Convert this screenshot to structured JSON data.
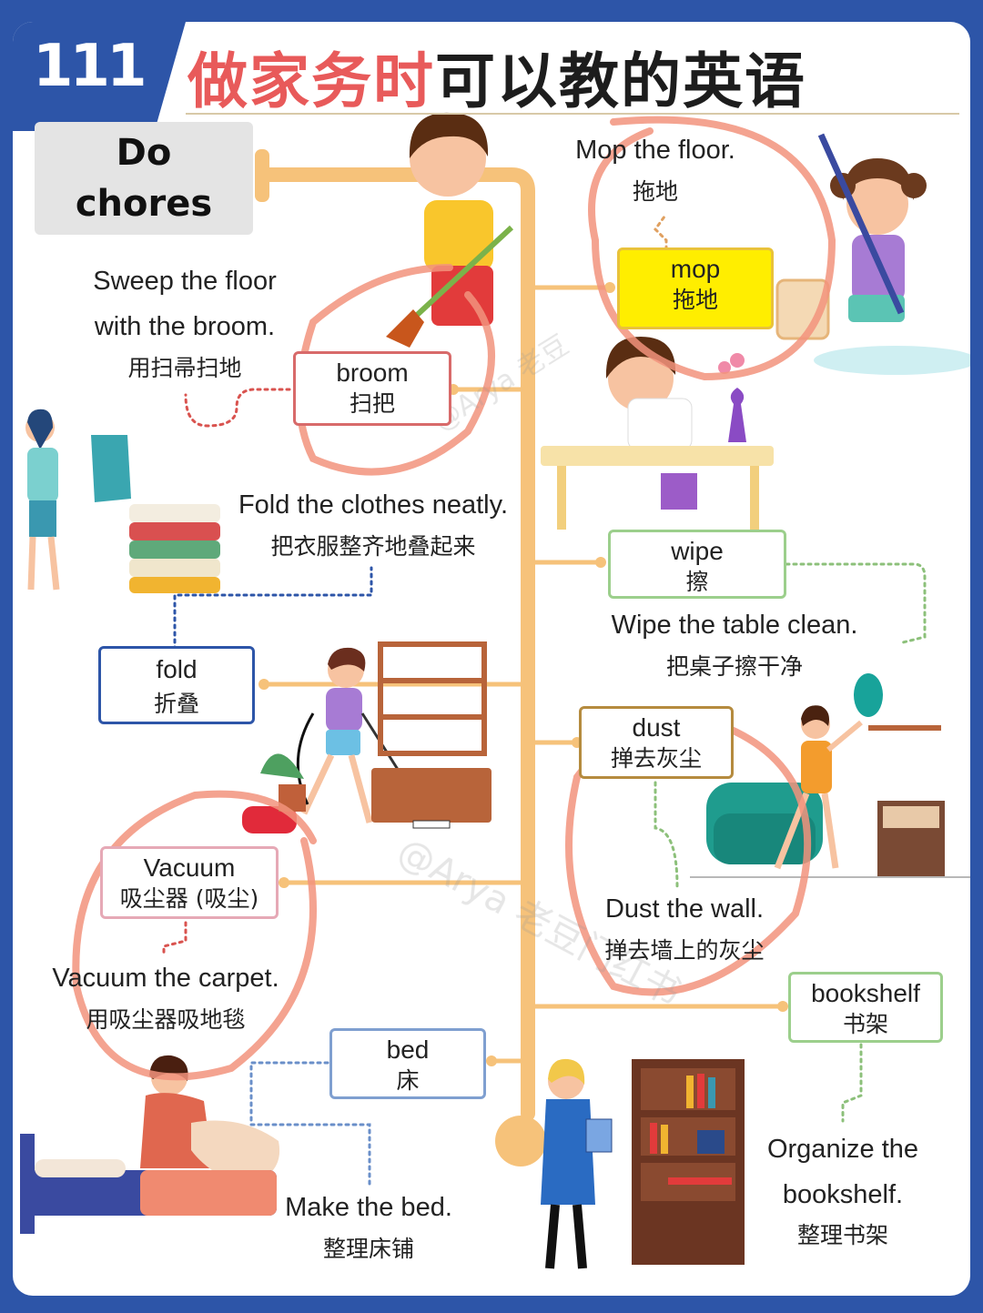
{
  "badge_number": "111",
  "title_red": "做家务时",
  "title_dark": "可以教的英语",
  "root": {
    "line1": "Do",
    "line2": "chores"
  },
  "words": {
    "mop": {
      "en": "mop",
      "zh": "拖地"
    },
    "broom": {
      "en": "broom",
      "zh": "扫把"
    },
    "wipe": {
      "en": "wipe",
      "zh": "擦"
    },
    "fold": {
      "en": "fold",
      "zh": "折叠"
    },
    "dust": {
      "en": "dust",
      "zh": "掸去灰尘"
    },
    "vacuum": {
      "en": "Vacuum",
      "zh": "吸尘器 (吸尘)"
    },
    "bookshelf": {
      "en": "bookshelf",
      "zh": "书架"
    },
    "bed": {
      "en": "bed",
      "zh": "床"
    }
  },
  "phrases": {
    "mop": {
      "en": "Mop the floor.",
      "zh": "拖地"
    },
    "sweep": {
      "en1": "Sweep the floor",
      "en2": "with the broom.",
      "zh": "用扫帚扫地"
    },
    "fold": {
      "en": "Fold the clothes neatly.",
      "zh": "把衣服整齐地叠起来"
    },
    "wipe": {
      "en": "Wipe the table clean.",
      "zh": "把桌子擦干净"
    },
    "dust": {
      "en": "Dust the wall.",
      "zh": "掸去墙上的灰尘"
    },
    "vacuum": {
      "en": "Vacuum the carpet.",
      "zh": "用吸尘器吸地毯"
    },
    "bookshelf": {
      "en1": "Organize the",
      "en2": "bookshelf.",
      "zh": "整理书架"
    },
    "bed": {
      "en": "Make the bed.",
      "zh": "整理床铺"
    }
  },
  "colors": {
    "brand_blue": "#2d55a8",
    "title_red": "#e85a5a",
    "trunk_orange": "#f6c27a",
    "highlight_yellow": "#ffee00",
    "annotation_red": "#f2937d"
  }
}
